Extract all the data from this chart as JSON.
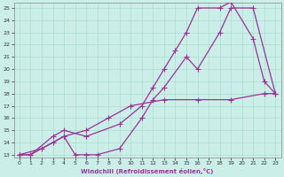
{
  "title": "",
  "xlabel": "Windchill (Refroidissement éolien,°C)",
  "ylabel": "",
  "bg_color": "#cceee8",
  "line_color": "#993399",
  "grid_color": "#aaddcc",
  "xlim": [
    -0.5,
    23.5
  ],
  "ylim": [
    12.8,
    25.4
  ],
  "xticks": [
    0,
    1,
    2,
    3,
    4,
    5,
    6,
    7,
    8,
    9,
    10,
    11,
    12,
    13,
    14,
    15,
    16,
    17,
    18,
    19,
    20,
    21,
    22,
    23
  ],
  "yticks": [
    13,
    14,
    15,
    16,
    17,
    18,
    19,
    20,
    21,
    22,
    23,
    24,
    25
  ],
  "line1_x": [
    0,
    1,
    3,
    4,
    5,
    6,
    7,
    9,
    11,
    12,
    13,
    15,
    16,
    18,
    19,
    21,
    23
  ],
  "line1_y": [
    13,
    13,
    14,
    14.5,
    13,
    13,
    13,
    13.5,
    16,
    17.5,
    18.5,
    21,
    20,
    23,
    25,
    25,
    18
  ],
  "line2_x": [
    0,
    1,
    3,
    4,
    6,
    9,
    11,
    12,
    13,
    14,
    15,
    16,
    18,
    19,
    21,
    22,
    23
  ],
  "line2_y": [
    13,
    13,
    14.5,
    15,
    14.5,
    15.5,
    17,
    18.5,
    20,
    21.5,
    23,
    25,
    25,
    25.5,
    22.5,
    19,
    18
  ],
  "line3_x": [
    0,
    2,
    4,
    6,
    8,
    10,
    13,
    16,
    19,
    22,
    23
  ],
  "line3_y": [
    13,
    13.5,
    14.5,
    15,
    16,
    17,
    17.5,
    17.5,
    17.5,
    18,
    18
  ]
}
